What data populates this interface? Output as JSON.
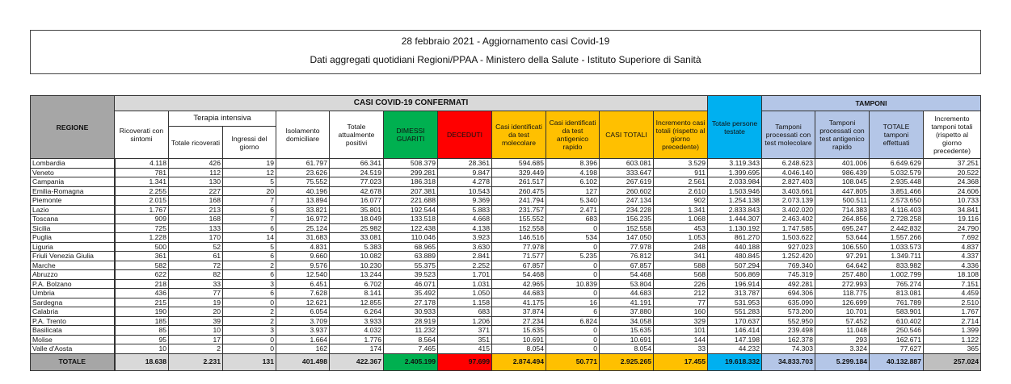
{
  "title": {
    "line1": "28 febbraio 2021 - Aggiornamento casi Covid-19",
    "line2": "Dati aggregati quotidiani Regioni/PPAA - Ministero della Salute - Istituto Superiore di Sanità"
  },
  "colors": {
    "dimessi": "#00b050",
    "deceduti": "#ff0000",
    "casi": "#ffc000",
    "persone": "#00b0f0",
    "tamponi": "#b4c6e7",
    "header_gray": "#a6a6a6"
  },
  "headers": {
    "regione": "REGIONE",
    "casi_group": "CASI COVID-19 CONFERMATI",
    "tamponi_group": "TAMPONI",
    "terapia_group": "Terapia intensiva",
    "cols": [
      "Ricoverati con sintomi",
      "Totale ricoverati",
      "Ingressi del giorno",
      "Isolamento domiciliare",
      "Totale attualmente positivi",
      "DIMESSI GUARITI",
      "DECEDUTI",
      "Casi identificati da test molecolare",
      "Casi identificati da test antigenico rapido",
      "CASI TOTALI",
      "Incremento casi totali (rispetto al giorno precedente)",
      "Totale persone testate",
      "Tamponi processati con test molecolare",
      "Tamponi processati con test antigenico rapido",
      "TOTALE tamponi effettuati",
      "Incremento tamponi totali (rispetto al giorno precedente)"
    ]
  },
  "rows": [
    [
      "Lombardia",
      "4.118",
      "426",
      "19",
      "61.797",
      "66.341",
      "508.379",
      "28.361",
      "594.685",
      "8.396",
      "603.081",
      "3.529",
      "3.119.343",
      "6.248.623",
      "401.006",
      "6.649.629",
      "37.251"
    ],
    [
      "Veneto",
      "781",
      "112",
      "12",
      "23.626",
      "24.519",
      "299.281",
      "9.847",
      "329.449",
      "4.198",
      "333.647",
      "911",
      "1.399.695",
      "4.046.140",
      "986.439",
      "5.032.579",
      "20.522"
    ],
    [
      "Campania",
      "1.341",
      "130",
      "5",
      "75.552",
      "77.023",
      "186.318",
      "4.278",
      "261.517",
      "6.102",
      "267.619",
      "2.561",
      "2.033.984",
      "2.827.403",
      "108.045",
      "2.935.448",
      "24.368"
    ],
    [
      "Emilia-Romagna",
      "2.255",
      "227",
      "20",
      "40.196",
      "42.678",
      "207.381",
      "10.543",
      "260.475",
      "127",
      "260.602",
      "2.610",
      "1.503.946",
      "3.403.661",
      "447.805",
      "3.851.466",
      "24.606"
    ],
    [
      "Piemonte",
      "2.015",
      "168",
      "7",
      "13.894",
      "16.077",
      "221.688",
      "9.369",
      "241.794",
      "5.340",
      "247.134",
      "902",
      "1.254.138",
      "2.073.139",
      "500.511",
      "2.573.650",
      "10.733"
    ],
    [
      "Lazio",
      "1.767",
      "213",
      "6",
      "33.821",
      "35.801",
      "192.544",
      "5.883",
      "231.757",
      "2.471",
      "234.228",
      "1.341",
      "2.833.843",
      "3.402.020",
      "714.383",
      "4.116.403",
      "34.841"
    ],
    [
      "Toscana",
      "909",
      "168",
      "7",
      "16.972",
      "18.049",
      "133.518",
      "4.668",
      "155.552",
      "683",
      "156.235",
      "1.068",
      "1.444.307",
      "2.463.402",
      "264.856",
      "2.728.258",
      "19.116"
    ],
    [
      "Sicilia",
      "725",
      "133",
      "6",
      "25.124",
      "25.982",
      "122.438",
      "4.138",
      "152.558",
      "0",
      "152.558",
      "453",
      "1.130.192",
      "1.747.585",
      "695.247",
      "2.442.832",
      "24.790"
    ],
    [
      "Puglia",
      "1.228",
      "170",
      "14",
      "31.683",
      "33.081",
      "110.046",
      "3.923",
      "146.516",
      "534",
      "147.050",
      "1.053",
      "861.270",
      "1.503.622",
      "53.644",
      "1.557.266",
      "7.692"
    ],
    [
      "Liguria",
      "500",
      "52",
      "5",
      "4.831",
      "5.383",
      "68.965",
      "3.630",
      "77.978",
      "0",
      "77.978",
      "248",
      "440.188",
      "927.023",
      "106.550",
      "1.033.573",
      "4.837"
    ],
    [
      "Friuli Venezia Giulia",
      "361",
      "61",
      "6",
      "9.660",
      "10.082",
      "63.889",
      "2.841",
      "71.577",
      "5.235",
      "76.812",
      "341",
      "480.845",
      "1.252.420",
      "97.291",
      "1.349.711",
      "4.337"
    ],
    [
      "Marche",
      "582",
      "72",
      "2",
      "9.576",
      "10.230",
      "55.375",
      "2.252",
      "67.857",
      "0",
      "67.857",
      "588",
      "507.294",
      "769.340",
      "64.642",
      "833.982",
      "4.336"
    ],
    [
      "Abruzzo",
      "622",
      "82",
      "6",
      "12.540",
      "13.244",
      "39.523",
      "1.701",
      "54.468",
      "0",
      "54.468",
      "568",
      "506.869",
      "745.319",
      "257.480",
      "1.002.799",
      "18.108"
    ],
    [
      "P.A. Bolzano",
      "218",
      "33",
      "3",
      "6.451",
      "6.702",
      "46.071",
      "1.031",
      "42.965",
      "10.839",
      "53.804",
      "226",
      "196.914",
      "492.281",
      "272.993",
      "765.274",
      "7.151"
    ],
    [
      "Umbria",
      "436",
      "77",
      "6",
      "7.628",
      "8.141",
      "35.492",
      "1.050",
      "44.683",
      "0",
      "44.683",
      "212",
      "313.787",
      "694.306",
      "118.775",
      "813.081",
      "4.459"
    ],
    [
      "Sardegna",
      "215",
      "19",
      "0",
      "12.621",
      "12.855",
      "27.178",
      "1.158",
      "41.175",
      "16",
      "41.191",
      "77",
      "531.953",
      "635.090",
      "126.699",
      "761.789",
      "2.510"
    ],
    [
      "Calabria",
      "190",
      "20",
      "2",
      "6.054",
      "6.264",
      "30.933",
      "683",
      "37.874",
      "6",
      "37.880",
      "160",
      "551.283",
      "573.200",
      "10.701",
      "583.901",
      "1.767"
    ],
    [
      "P.A. Trento",
      "185",
      "39",
      "2",
      "3.709",
      "3.933",
      "28.919",
      "1.206",
      "27.234",
      "6.824",
      "34.058",
      "329",
      "170.637",
      "552.950",
      "57.452",
      "610.402",
      "2.714"
    ],
    [
      "Basilicata",
      "85",
      "10",
      "3",
      "3.937",
      "4.032",
      "11.232",
      "371",
      "15.635",
      "0",
      "15.635",
      "101",
      "146.414",
      "239.498",
      "11.048",
      "250.546",
      "1.399"
    ],
    [
      "Molise",
      "95",
      "17",
      "0",
      "1.664",
      "1.776",
      "8.564",
      "351",
      "10.691",
      "0",
      "10.691",
      "144",
      "147.198",
      "162.378",
      "293",
      "162.671",
      "1.122"
    ],
    [
      "Valle d'Aosta",
      "10",
      "2",
      "0",
      "162",
      "174",
      "7.465",
      "415",
      "8.054",
      "0",
      "8.054",
      "33",
      "44.232",
      "74.303",
      "3.324",
      "77.627",
      "365"
    ]
  ],
  "total": [
    "TOTALE",
    "18.638",
    "2.231",
    "131",
    "401.498",
    "422.367",
    "2.405.199",
    "97.699",
    "2.874.494",
    "50.771",
    "2.925.265",
    "17.455",
    "19.618.332",
    "34.833.703",
    "5.299.184",
    "40.132.887",
    "257.024"
  ]
}
